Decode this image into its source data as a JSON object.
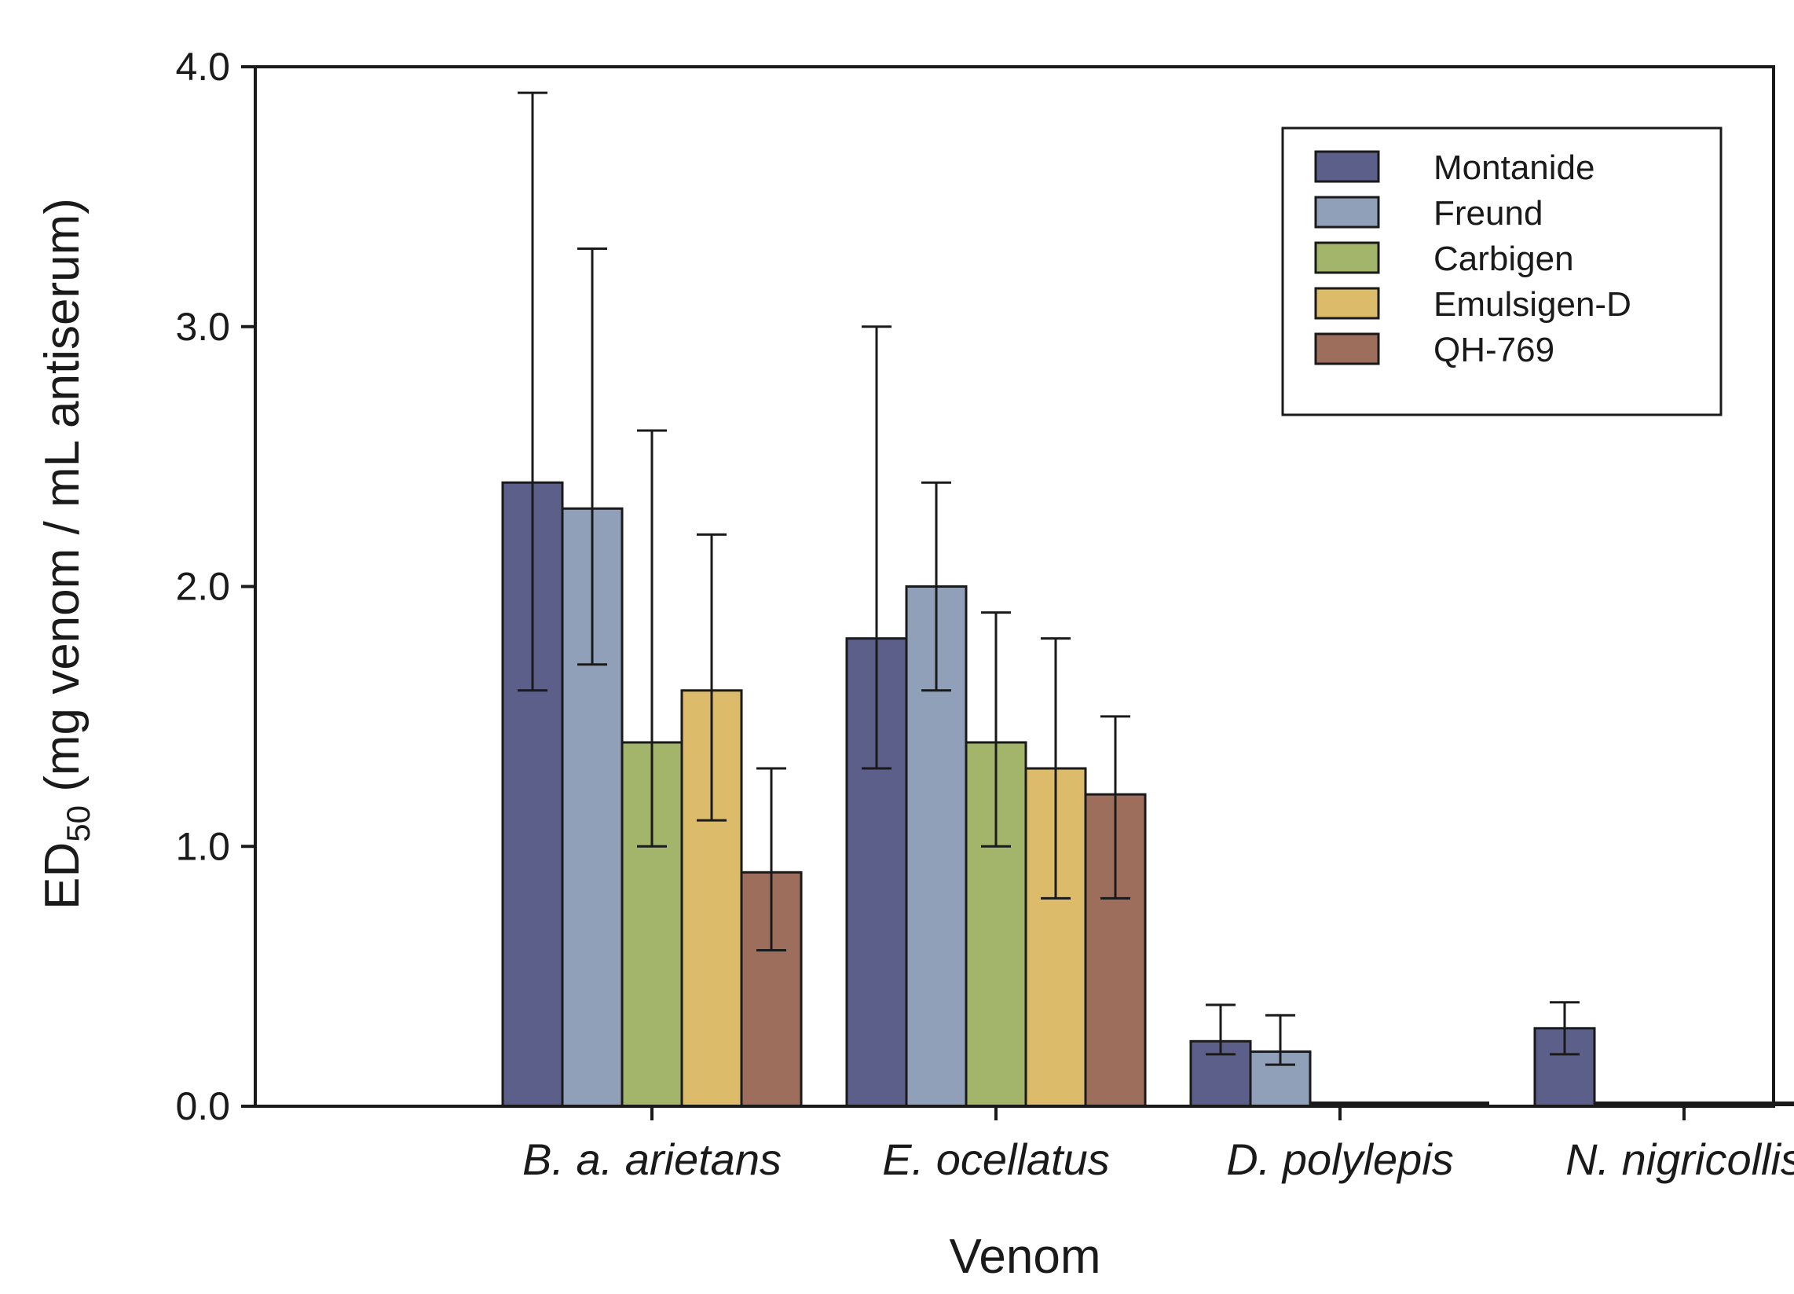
{
  "chart_data": {
    "type": "bar",
    "title": "",
    "xlabel": "Venom",
    "ylabel_main": "ED",
    "ylabel_sub": "50",
    "ylabel_rest": " (mg venom / mL antiserum)",
    "ylim": [
      0,
      4.0
    ],
    "yticks": [
      "0.0",
      "1.0",
      "2.0",
      "3.0",
      "4.0"
    ],
    "ytick_values": [
      0,
      1,
      2,
      3,
      4
    ],
    "grid": false,
    "legend_position": "top-right",
    "categories": [
      "B. a. arietans",
      "E. ocellatus",
      "D. polylepis",
      "N. nigricollis"
    ],
    "series": [
      {
        "name": "Montanide",
        "color": "#5b5f8a",
        "values": [
          2.4,
          1.8,
          0.25,
          0.3
        ],
        "err_low": [
          1.6,
          1.3,
          0.2,
          0.2
        ],
        "err_high": [
          3.9,
          3.0,
          0.39,
          0.4
        ]
      },
      {
        "name": "Freund",
        "color": "#8fa0b8",
        "values": [
          2.3,
          2.0,
          0.21,
          0.0
        ],
        "err_low": [
          1.7,
          1.6,
          0.16,
          null
        ],
        "err_high": [
          3.3,
          2.4,
          0.35,
          null
        ]
      },
      {
        "name": "Carbigen",
        "color": "#a3b56a",
        "values": [
          1.4,
          1.4,
          0.0,
          0.0
        ],
        "err_low": [
          1.0,
          1.0,
          null,
          null
        ],
        "err_high": [
          2.6,
          1.9,
          null,
          null
        ]
      },
      {
        "name": "Emulsigen-D",
        "color": "#dcbc6a",
        "values": [
          1.6,
          1.3,
          0.0,
          0.0
        ],
        "err_low": [
          1.1,
          0.8,
          null,
          null
        ],
        "err_high": [
          2.2,
          1.8,
          null,
          null
        ]
      },
      {
        "name": "QH-769",
        "color": "#9e6e5c",
        "values": [
          0.9,
          1.2,
          0.0,
          0.0
        ],
        "err_low": [
          0.6,
          0.8,
          null,
          null
        ],
        "err_high": [
          1.3,
          1.5,
          null,
          null
        ]
      }
    ]
  }
}
